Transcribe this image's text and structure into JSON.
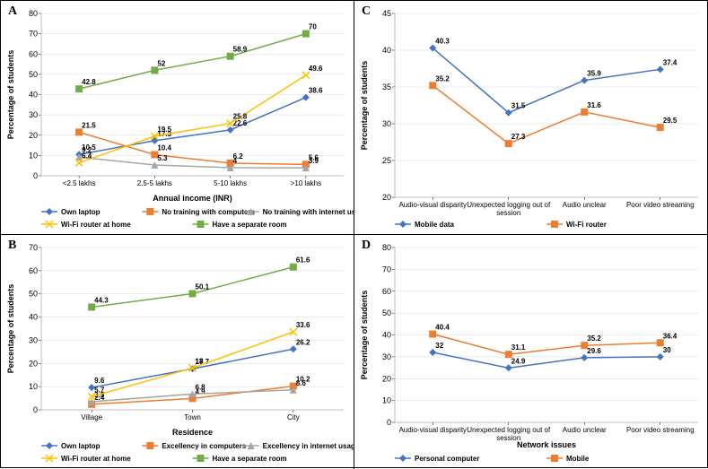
{
  "colors": {
    "blue": "#4472c4",
    "orange": "#ed7d31",
    "grey": "#a5a5a5",
    "yellow": "#ffc000",
    "green": "#70ad47",
    "axis": "#bfbfbf",
    "grid": "#d9d9d9"
  },
  "panels": {
    "A": {
      "letter": "A",
      "ylabel": "Percentage of students",
      "xlabel": "Annual income (INR)",
      "categories": [
        "<2.5 lakhs",
        "2.5-5 lakhs",
        "5-10 lakhs",
        ">10 lakhs"
      ],
      "ylim": [
        0,
        80
      ],
      "ytick_step": 10,
      "series": [
        {
          "name": "Own laptop",
          "color": "blue",
          "marker": "diamond",
          "values": [
            10.5,
            17.3,
            22.6,
            38.6
          ]
        },
        {
          "name": "No training with computers",
          "color": "orange",
          "marker": "square",
          "values": [
            21.5,
            10.4,
            6.2,
            5.6
          ]
        },
        {
          "name": "No training with internet usage",
          "color": "grey",
          "marker": "triangle",
          "values": [
            9.2,
            5.3,
            4,
            3.9
          ]
        },
        {
          "name": "Wi-Fi router at home",
          "color": "yellow",
          "marker": "x",
          "values": [
            6.4,
            19.5,
            25.8,
            49.6
          ]
        },
        {
          "name": "Have a separate room",
          "color": "green",
          "marker": "square",
          "values": [
            42.8,
            52,
            58.9,
            70
          ]
        }
      ],
      "legend_rows": [
        [
          0,
          1,
          2
        ],
        [
          3,
          4
        ]
      ]
    },
    "B": {
      "letter": "B",
      "ylabel": "Percentage of students",
      "xlabel": "Residence",
      "categories": [
        "Village",
        "Town",
        "City"
      ],
      "ylim": [
        0,
        70
      ],
      "ytick_step": 10,
      "series": [
        {
          "name": "Own laptop",
          "color": "blue",
          "marker": "diamond",
          "values": [
            9.6,
            17.7,
            26.2
          ]
        },
        {
          "name": "Excellency in computers",
          "color": "orange",
          "marker": "square",
          "values": [
            2.4,
            4.9,
            10.2
          ]
        },
        {
          "name": "Excellency in internet usage",
          "color": "grey",
          "marker": "triangle",
          "values": [
            3.5,
            6.8,
            8.6
          ]
        },
        {
          "name": "Wi-Fi router at home",
          "color": "yellow",
          "marker": "x",
          "values": [
            5.7,
            18,
            33.6
          ]
        },
        {
          "name": "Have a separate room",
          "color": "green",
          "marker": "square",
          "values": [
            44.3,
            50.1,
            61.6
          ]
        }
      ],
      "legend_rows": [
        [
          0,
          1,
          2
        ],
        [
          3,
          4
        ]
      ]
    },
    "C": {
      "letter": "C",
      "ylabel": "Percentage of students",
      "xlabel": "",
      "categories": [
        "Audio-visual disparity",
        "Unexpected logging out of\nsession",
        "Audio unclear",
        "Poor video streaming"
      ],
      "ylim": [
        20,
        45
      ],
      "ytick_step": 5,
      "series": [
        {
          "name": "Mobile data",
          "color": "blue",
          "marker": "diamond",
          "values": [
            40.3,
            31.5,
            35.9,
            37.4
          ]
        },
        {
          "name": "Wi-Fi router",
          "color": "orange",
          "marker": "square",
          "values": [
            35.2,
            27.3,
            31.6,
            29.5
          ]
        }
      ],
      "legend_rows": [
        [
          0,
          1
        ]
      ]
    },
    "D": {
      "letter": "D",
      "ylabel": "Percentage of students",
      "xlabel": "Network issues",
      "categories": [
        "Audio-visual disparity",
        "Unexpected logging out of\nsession",
        "Audio unclear",
        "Poor video streaming"
      ],
      "ylim": [
        0,
        80
      ],
      "ytick_step": 10,
      "series": [
        {
          "name": "Personal computer",
          "color": "blue",
          "marker": "diamond",
          "values": [
            32,
            24.9,
            29.6,
            30
          ]
        },
        {
          "name": "Mobile",
          "color": "orange",
          "marker": "square",
          "values": [
            40.4,
            31.1,
            35.2,
            36.4
          ],
          "label_values": [
            "40.4",
            "31.1",
            "35.2",
            "36.4"
          ]
        }
      ],
      "legend_rows": [
        [
          0,
          1
        ]
      ]
    }
  },
  "marker_size": 4,
  "line_width": 1.5,
  "label_fontsize": 8
}
